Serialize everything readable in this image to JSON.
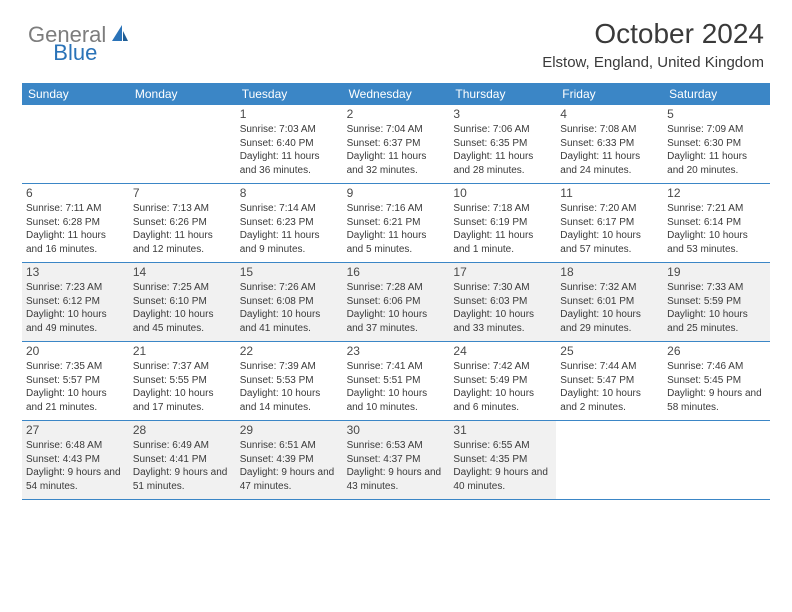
{
  "logo": {
    "part1": "General",
    "part2": "Blue"
  },
  "title": "October 2024",
  "location": "Elstow, England, United Kingdom",
  "colors": {
    "header_bg": "#3b86c6",
    "header_text": "#ffffff",
    "body_text": "#3a3a3a",
    "shaded_bg": "#f1f1f1",
    "border": "#3b86c6",
    "logo_gray": "#7d7d7d",
    "logo_blue": "#2a73b8"
  },
  "typography": {
    "title_fontsize": 28,
    "location_fontsize": 15,
    "weekday_fontsize": 12,
    "daynum_fontsize": 12,
    "body_fontsize": 10
  },
  "weekdays": [
    "Sunday",
    "Monday",
    "Tuesday",
    "Wednesday",
    "Thursday",
    "Friday",
    "Saturday"
  ],
  "weeks": [
    {
      "shaded": false,
      "days": [
        null,
        null,
        {
          "n": "1",
          "sr": "7:03 AM",
          "ss": "6:40 PM",
          "dl": "11 hours and 36 minutes."
        },
        {
          "n": "2",
          "sr": "7:04 AM",
          "ss": "6:37 PM",
          "dl": "11 hours and 32 minutes."
        },
        {
          "n": "3",
          "sr": "7:06 AM",
          "ss": "6:35 PM",
          "dl": "11 hours and 28 minutes."
        },
        {
          "n": "4",
          "sr": "7:08 AM",
          "ss": "6:33 PM",
          "dl": "11 hours and 24 minutes."
        },
        {
          "n": "5",
          "sr": "7:09 AM",
          "ss": "6:30 PM",
          "dl": "11 hours and 20 minutes."
        }
      ]
    },
    {
      "shaded": false,
      "days": [
        {
          "n": "6",
          "sr": "7:11 AM",
          "ss": "6:28 PM",
          "dl": "11 hours and 16 minutes."
        },
        {
          "n": "7",
          "sr": "7:13 AM",
          "ss": "6:26 PM",
          "dl": "11 hours and 12 minutes."
        },
        {
          "n": "8",
          "sr": "7:14 AM",
          "ss": "6:23 PM",
          "dl": "11 hours and 9 minutes."
        },
        {
          "n": "9",
          "sr": "7:16 AM",
          "ss": "6:21 PM",
          "dl": "11 hours and 5 minutes."
        },
        {
          "n": "10",
          "sr": "7:18 AM",
          "ss": "6:19 PM",
          "dl": "11 hours and 1 minute."
        },
        {
          "n": "11",
          "sr": "7:20 AM",
          "ss": "6:17 PM",
          "dl": "10 hours and 57 minutes."
        },
        {
          "n": "12",
          "sr": "7:21 AM",
          "ss": "6:14 PM",
          "dl": "10 hours and 53 minutes."
        }
      ]
    },
    {
      "shaded": true,
      "days": [
        {
          "n": "13",
          "sr": "7:23 AM",
          "ss": "6:12 PM",
          "dl": "10 hours and 49 minutes."
        },
        {
          "n": "14",
          "sr": "7:25 AM",
          "ss": "6:10 PM",
          "dl": "10 hours and 45 minutes."
        },
        {
          "n": "15",
          "sr": "7:26 AM",
          "ss": "6:08 PM",
          "dl": "10 hours and 41 minutes."
        },
        {
          "n": "16",
          "sr": "7:28 AM",
          "ss": "6:06 PM",
          "dl": "10 hours and 37 minutes."
        },
        {
          "n": "17",
          "sr": "7:30 AM",
          "ss": "6:03 PM",
          "dl": "10 hours and 33 minutes."
        },
        {
          "n": "18",
          "sr": "7:32 AM",
          "ss": "6:01 PM",
          "dl": "10 hours and 29 minutes."
        },
        {
          "n": "19",
          "sr": "7:33 AM",
          "ss": "5:59 PM",
          "dl": "10 hours and 25 minutes."
        }
      ]
    },
    {
      "shaded": false,
      "days": [
        {
          "n": "20",
          "sr": "7:35 AM",
          "ss": "5:57 PM",
          "dl": "10 hours and 21 minutes."
        },
        {
          "n": "21",
          "sr": "7:37 AM",
          "ss": "5:55 PM",
          "dl": "10 hours and 17 minutes."
        },
        {
          "n": "22",
          "sr": "7:39 AM",
          "ss": "5:53 PM",
          "dl": "10 hours and 14 minutes."
        },
        {
          "n": "23",
          "sr": "7:41 AM",
          "ss": "5:51 PM",
          "dl": "10 hours and 10 minutes."
        },
        {
          "n": "24",
          "sr": "7:42 AM",
          "ss": "5:49 PM",
          "dl": "10 hours and 6 minutes."
        },
        {
          "n": "25",
          "sr": "7:44 AM",
          "ss": "5:47 PM",
          "dl": "10 hours and 2 minutes."
        },
        {
          "n": "26",
          "sr": "7:46 AM",
          "ss": "5:45 PM",
          "dl": "9 hours and 58 minutes."
        }
      ]
    },
    {
      "shaded": true,
      "days": [
        {
          "n": "27",
          "sr": "6:48 AM",
          "ss": "4:43 PM",
          "dl": "9 hours and 54 minutes."
        },
        {
          "n": "28",
          "sr": "6:49 AM",
          "ss": "4:41 PM",
          "dl": "9 hours and 51 minutes."
        },
        {
          "n": "29",
          "sr": "6:51 AM",
          "ss": "4:39 PM",
          "dl": "9 hours and 47 minutes."
        },
        {
          "n": "30",
          "sr": "6:53 AM",
          "ss": "4:37 PM",
          "dl": "9 hours and 43 minutes."
        },
        {
          "n": "31",
          "sr": "6:55 AM",
          "ss": "4:35 PM",
          "dl": "9 hours and 40 minutes."
        },
        null,
        null
      ]
    }
  ],
  "labels": {
    "sunrise": "Sunrise:",
    "sunset": "Sunset:",
    "daylight": "Daylight:"
  }
}
